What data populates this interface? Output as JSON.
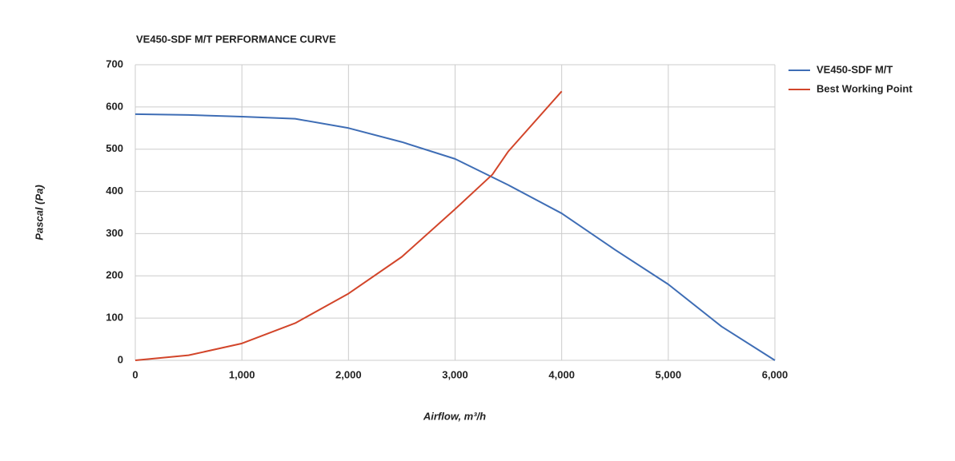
{
  "chart_data": {
    "type": "line",
    "title": "VE450-SDF M/T PERFORMANCE CURVE",
    "x_label": "Airflow, m³/h",
    "y_label": "Pascal (Pa)",
    "xlim": [
      0,
      6000
    ],
    "xticks": [
      0,
      {
        "value": 1000,
        "label": "1,000"
      },
      {
        "value": 2000,
        "label": "2,000"
      },
      {
        "value": 3000,
        "label": "3,000"
      },
      {
        "value": 4000,
        "label": "4,000"
      },
      {
        "value": 5000,
        "label": "5,000"
      },
      {
        "value": 6000,
        "label": "6,000"
      }
    ],
    "ylim": [
      0,
      700
    ],
    "yticks": [
      0,
      100,
      200,
      300,
      400,
      500,
      600,
      700
    ],
    "grid": true,
    "legend": "right",
    "series": [
      {
        "name": "VE450-SDF M/T",
        "color": "#3e6db5",
        "x": [
          0,
          500,
          1000,
          1500,
          2000,
          2500,
          3000,
          3500,
          4000,
          4500,
          5000,
          5500,
          6000
        ],
        "values": [
          583,
          581,
          577,
          572,
          550,
          517,
          477,
          415,
          348,
          262,
          180,
          80,
          0
        ]
      },
      {
        "name": "Best Working Point",
        "color": "#d2452a",
        "x": [
          0,
          500,
          1000,
          1500,
          2000,
          2500,
          3000,
          3350,
          3500,
          4000
        ],
        "values": [
          0,
          12,
          40,
          88,
          158,
          245,
          358,
          440,
          495,
          637
        ]
      }
    ]
  }
}
